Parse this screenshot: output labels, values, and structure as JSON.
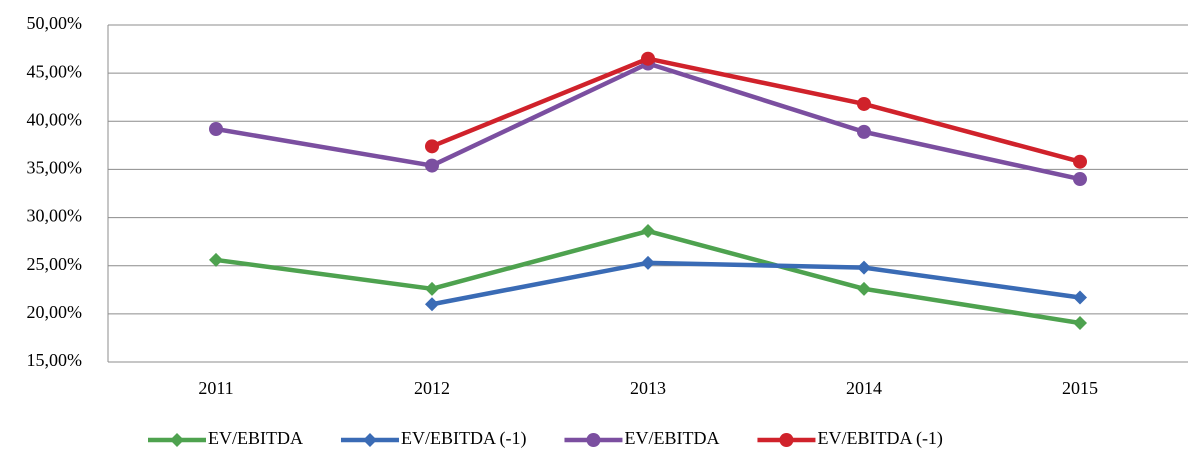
{
  "chart_data": {
    "type": "line",
    "categories": [
      "2011",
      "2012",
      "2013",
      "2014",
      "2015"
    ],
    "series": [
      {
        "name": "EV/EBITDA",
        "color": "#4ea24f",
        "marker": "diamond",
        "values": [
          25.6,
          22.6,
          28.6,
          22.6,
          19.05
        ]
      },
      {
        "name": "EV/EBITDA (-1)",
        "color": "#3a6bb5",
        "marker": "diamond",
        "values": [
          null,
          21.0,
          25.3,
          24.8,
          21.7
        ]
      },
      {
        "name": "EV/EBITDA",
        "color": "#7b4fa0",
        "marker": "circle",
        "values": [
          39.2,
          35.4,
          46.0,
          38.9,
          34.0
        ]
      },
      {
        "name": "EV/EBITDA (-1)",
        "color": "#d0222b",
        "marker": "circle",
        "values": [
          null,
          37.4,
          46.5,
          41.8,
          35.8
        ]
      }
    ],
    "ylim": [
      15,
      50
    ],
    "yticks": [
      {
        "value": 15,
        "label": "15,00%"
      },
      {
        "value": 20,
        "label": "20,00%"
      },
      {
        "value": 25,
        "label": "25,00%"
      },
      {
        "value": 30,
        "label": "30,00%"
      },
      {
        "value": 35,
        "label": "35,00%"
      },
      {
        "value": 40,
        "label": "40,00%"
      },
      {
        "value": 45,
        "label": "45,00%"
      },
      {
        "value": 50,
        "label": "50,00%"
      }
    ],
    "grid": true,
    "legend": "bottom"
  }
}
